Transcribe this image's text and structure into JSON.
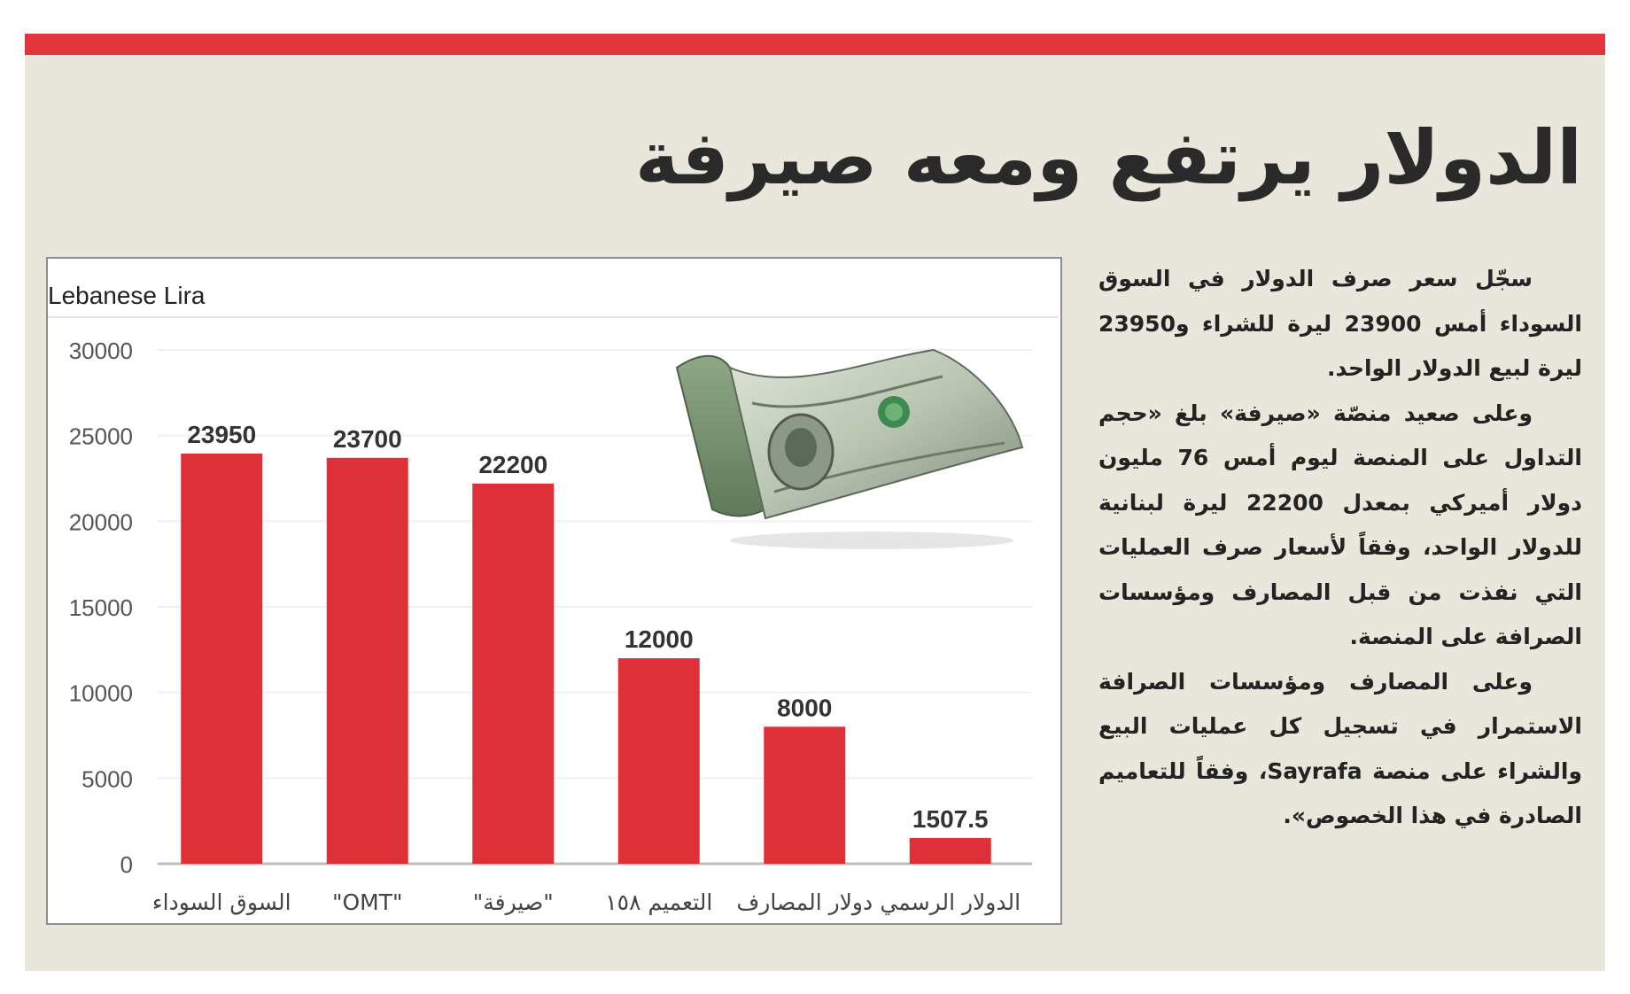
{
  "headline": "الدولار يرتفع ومعه صيرفة",
  "article": [
    "سجّل سعر صرف الدولار في السوق السوداء أمس 23900 ليرة للشراء و23950 ليرة لبيع الدولار الواحد.",
    "وعلى صعيد منصّة «صيرفة» بلغ «حجم التداول على المنصة ليوم أمس 76 مليون دولار أميركي بمعدل 22200 ليرة لبنانية للدولار الواحد، وفقاً لأسعار صرف العمليات التي نفذت من قبل المصارف ومؤسسات الصرافة على المنصة.",
    "وعلى المصارف ومؤسسات الصرافة الاستمرار في تسجيل كل عمليات البيع والشراء على منصة Sayrafa، وفقاً للتعاميم الصادرة في هذا الخصوص»."
  ],
  "colors": {
    "accent": "#e3343c",
    "bar": "#de3038",
    "panel": "#e9e6dc"
  },
  "chart_data": {
    "type": "bar",
    "title": "Lebanese Lira",
    "categories": [
      "السوق السوداء",
      "\"OMT\"",
      "\"صيرفة\"",
      "التعميم ١٥٨",
      "دولار المصارف",
      "الدولار الرسمي"
    ],
    "values": [
      23950,
      23700,
      22200,
      12000,
      8000,
      1507.5
    ],
    "value_labels": [
      "23950",
      "23700",
      "22200",
      "12000",
      "8000",
      "1507.5"
    ],
    "y_ticks": [
      "0",
      "5000",
      "10000",
      "15000",
      "20000",
      "25000",
      "30000"
    ],
    "ylim": [
      0,
      30000
    ],
    "grid": true,
    "xlabel": "",
    "ylabel": ""
  }
}
